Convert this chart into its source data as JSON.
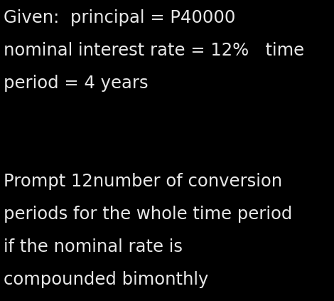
{
  "background_color": "#000000",
  "text_color": "#e8e8e8",
  "lines": [
    "Given:  principal = P40000",
    "nominal interest rate = 12%   time",
    "period = 4 years",
    "",
    "",
    "Prompt 12number of conversion",
    "periods for the whole time period",
    "if the nominal rate is",
    "compounded bimonthly"
  ],
  "font_size": 17.5,
  "figwidth": 4.7,
  "figheight": 4.23,
  "dpi": 100
}
